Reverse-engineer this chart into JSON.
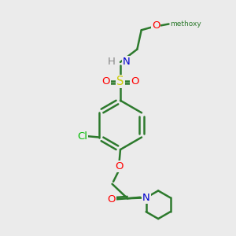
{
  "bg_color": "#ebebeb",
  "bond_color": "#2d7a2d",
  "bond_width": 1.8,
  "atom_colors": {
    "O": "#ff0000",
    "N": "#0000cc",
    "S": "#cccc00",
    "Cl": "#00bb00",
    "H": "#888888",
    "C": "#2d7a2d"
  },
  "font_size": 9.5
}
